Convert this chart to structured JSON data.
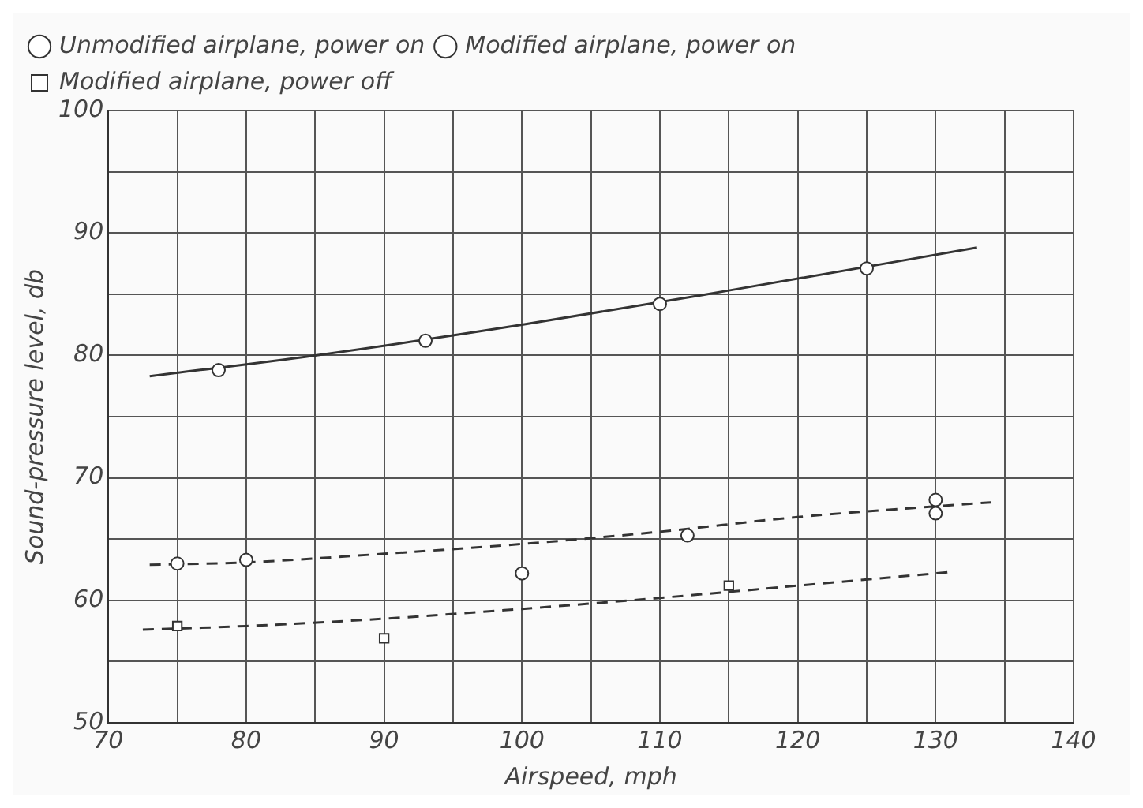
{
  "chart_data": {
    "type": "scatter",
    "xlabel": "Airspeed, mph",
    "ylabel": "Sound-pressure level, db",
    "xlim": [
      70,
      140
    ],
    "ylim": [
      50,
      100
    ],
    "xticks": [
      70,
      {
        "value": 75,
        "label": null
      },
      80,
      {
        "value": 85,
        "label": null
      },
      90,
      {
        "value": 95,
        "label": null
      },
      100,
      {
        "value": 105,
        "label": null
      },
      110,
      {
        "value": 115,
        "label": null
      },
      120,
      {
        "value": 125,
        "label": null
      },
      130,
      {
        "value": 135,
        "label": null
      },
      140
    ],
    "yticks": [
      50,
      {
        "value": 55,
        "label": null
      },
      60,
      {
        "value": 65,
        "label": null
      },
      70,
      {
        "value": 75,
        "label": null
      },
      80,
      {
        "value": 85,
        "label": null
      },
      90,
      {
        "value": 95,
        "label": null
      },
      100
    ],
    "grid": true,
    "legend": "top left",
    "series": [
      {
        "name": "Unmodified airplane, power on",
        "marker": "circle",
        "line_style": "solid",
        "color": "#333333",
        "x": [
          78,
          93,
          110,
          125
        ],
        "values": [
          78.8,
          81.2,
          84.2,
          87.1
        ]
      },
      {
        "name": "Modified airplane, power on",
        "marker": "circle",
        "line_style": "dashed",
        "color": "#333333",
        "x": [
          75,
          80,
          100,
          112,
          130,
          130
        ],
        "values": [
          63,
          63.3,
          62.2,
          65.3,
          68.2,
          67.1
        ]
      },
      {
        "name": "Modified airplane, power off",
        "marker": "square",
        "line_style": "dashed",
        "color": "#333333",
        "x": [
          75,
          90,
          115
        ],
        "values": [
          57.9,
          56.9,
          61.2
        ]
      },
      {
        "type": "line",
        "marker": "none",
        "line_style": "solid",
        "color": "#333333",
        "x": [
          73,
          85,
          100,
          115,
          133
        ],
        "values": [
          78.3,
          80.0,
          82.5,
          85.3,
          88.8
        ]
      },
      {
        "type": "line",
        "marker": "none",
        "line_style": "dashed",
        "color": "#333333",
        "x": [
          73,
          80,
          90,
          100,
          110,
          120,
          134
        ],
        "values": [
          62.9,
          63.1,
          63.8,
          64.6,
          65.6,
          66.8,
          68.0
        ]
      },
      {
        "type": "line",
        "marker": "none",
        "line_style": "dashed",
        "color": "#333333",
        "x": [
          72.5,
          80,
          90,
          100,
          110,
          120,
          131
        ],
        "values": [
          57.6,
          57.9,
          58.5,
          59.3,
          60.2,
          61.2,
          62.3
        ]
      }
    ]
  }
}
